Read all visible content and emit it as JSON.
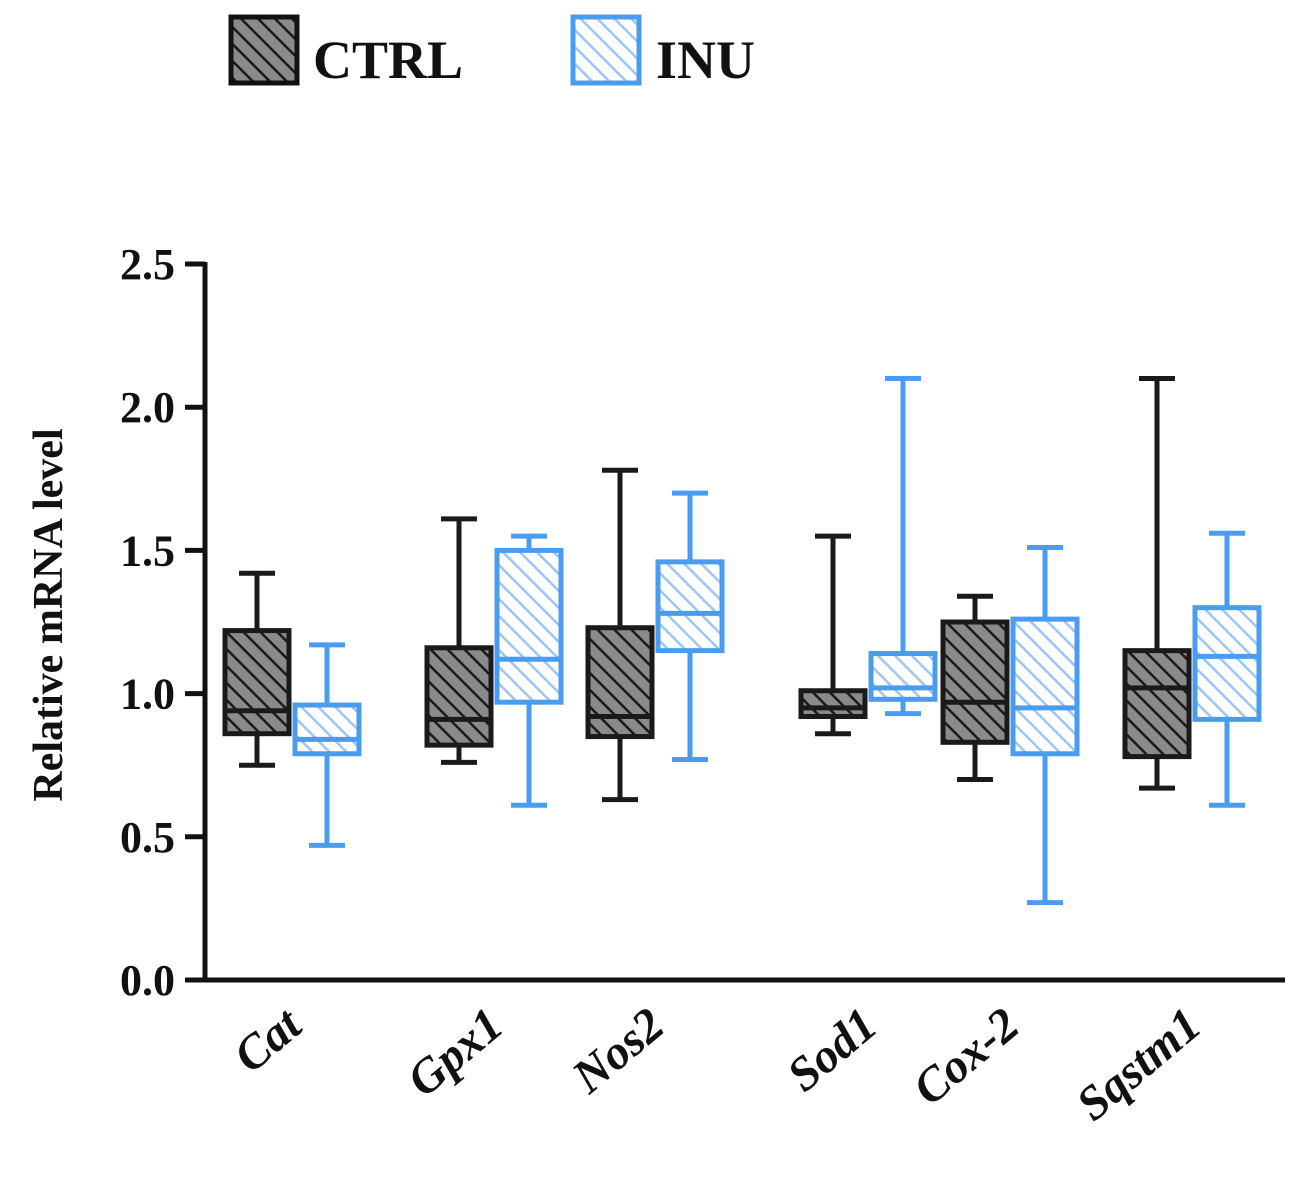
{
  "chart_data": {
    "type": "box",
    "ylabel": "Relative mRNA level",
    "xlabel": "",
    "ylim": [
      0,
      2.5
    ],
    "yticks": [
      "0.0",
      "0.5",
      "1.0",
      "1.5",
      "2.0",
      "2.5"
    ],
    "grid": false,
    "legend_position": "top-left",
    "categories": [
      "Cat",
      "Gpx1",
      "Nos2",
      "Sod1",
      "Cox-2",
      "Sqstm1"
    ],
    "series": [
      {
        "name": "CTRL",
        "color": "#1a1a1a",
        "fill": "#8a8a8a",
        "boxes": [
          {
            "min": 0.75,
            "q1": 0.86,
            "median": 0.94,
            "q3": 1.22,
            "max": 1.42
          },
          {
            "min": 0.76,
            "q1": 0.82,
            "median": 0.91,
            "q3": 1.16,
            "max": 1.61
          },
          {
            "min": 0.63,
            "q1": 0.85,
            "median": 0.92,
            "q3": 1.23,
            "max": 1.78
          },
          {
            "min": 0.86,
            "q1": 0.92,
            "median": 0.95,
            "q3": 1.01,
            "max": 1.55
          },
          {
            "min": 0.7,
            "q1": 0.83,
            "median": 0.97,
            "q3": 1.25,
            "max": 1.34
          },
          {
            "min": 0.67,
            "q1": 0.78,
            "median": 1.02,
            "q3": 1.15,
            "max": 2.1
          }
        ]
      },
      {
        "name": "INU",
        "color": "#4a9cf0",
        "fill": "#a9cdf6",
        "boxes": [
          {
            "min": 0.47,
            "q1": 0.79,
            "median": 0.84,
            "q3": 0.96,
            "max": 1.17
          },
          {
            "min": 0.61,
            "q1": 0.97,
            "median": 1.12,
            "q3": 1.5,
            "max": 1.55
          },
          {
            "min": 0.77,
            "q1": 1.15,
            "median": 1.28,
            "q3": 1.46,
            "max": 1.7
          },
          {
            "min": 0.93,
            "q1": 0.98,
            "median": 1.02,
            "q3": 1.14,
            "max": 2.1
          },
          {
            "min": 0.27,
            "q1": 0.79,
            "median": 0.95,
            "q3": 1.26,
            "max": 1.51
          },
          {
            "min": 0.61,
            "q1": 0.91,
            "median": 1.13,
            "q3": 1.3,
            "max": 1.56
          }
        ]
      }
    ]
  }
}
